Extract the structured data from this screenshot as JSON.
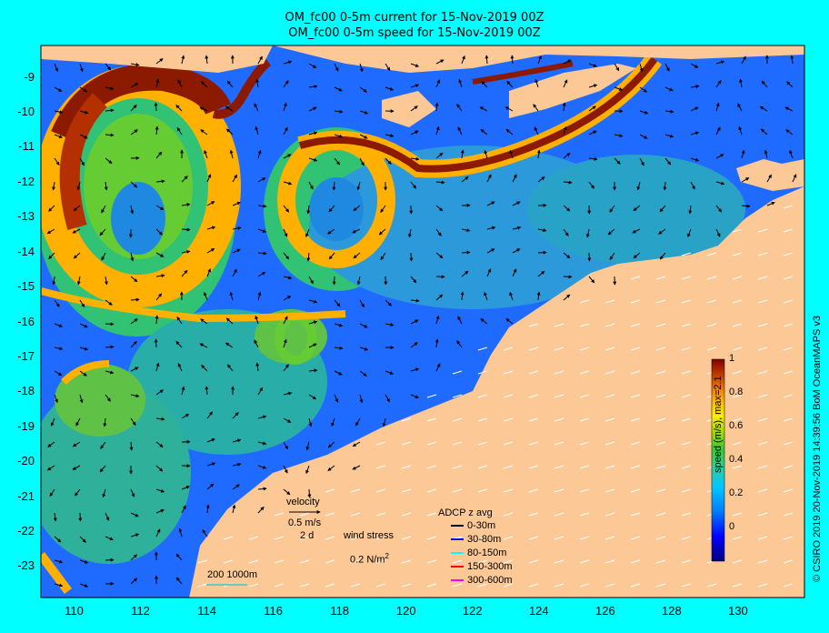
{
  "titles": {
    "line1": "OM_fc00 0-5m current for 15-Nov-2019 00Z",
    "line2": "OM_fc00 0-5m speed for 15-Nov-2019 00Z"
  },
  "map": {
    "lon_range": [
      109,
      132
    ],
    "lat_range": [
      -23.9,
      -8.1
    ],
    "x_ticks": [
      "110",
      "112",
      "114",
      "116",
      "118",
      "120",
      "122",
      "124",
      "126",
      "128",
      "130"
    ],
    "y_ticks": [
      "-9",
      "-10",
      "-11",
      "-12",
      "-13",
      "-14",
      "-15",
      "-16",
      "-17",
      "-18",
      "-19",
      "-20",
      "-21",
      "-22",
      "-23"
    ],
    "colors": {
      "land": "#fbc896",
      "ocean_low": "#1f6bff",
      "ocean_mid": "#33cc66",
      "ocean_high": "#ff9900",
      "jet": "#8b1a00",
      "frame": "#00ffff"
    }
  },
  "colorbar": {
    "title": "speed (m/s), max=2.1",
    "ticks": [
      "1",
      "0.8",
      "0.6",
      "0.4",
      "0.2",
      "0"
    ],
    "range": [
      -0.2,
      1.0
    ]
  },
  "legend": {
    "velocity_label": "velocity",
    "velocity_value": "0.5 m/s",
    "velocity_time": "2 d",
    "wind_label": "wind stress",
    "wind_value": "0.2 N/m",
    "wind_exp": "2",
    "depth_label": "200  1000m",
    "adcp_title": "ADCP z avg",
    "adcp_items": [
      {
        "label": "0-30m",
        "color": "#000000"
      },
      {
        "label": "30-80m",
        "color": "#0000ff"
      },
      {
        "label": "80-150m",
        "color": "#00ffff"
      },
      {
        "label": "150-300m",
        "color": "#ff0000"
      },
      {
        "label": "300-600m",
        "color": "#ff00ff"
      }
    ]
  },
  "credit": "© CSIRO 2019   20-Nov-2019 14:39:56 BoM OceanMAPS v3"
}
